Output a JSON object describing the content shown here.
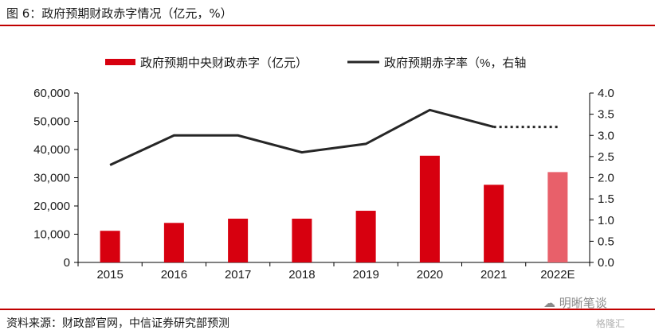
{
  "figure": {
    "title": "图 6：政府预期财政赤字情况（亿元，%）",
    "source": "资料来源：财政部官网，中信证券研究部预测",
    "watermark": "明晰笔谈",
    "watermark_sub": "格隆汇"
  },
  "chart_data": {
    "type": "bar",
    "categories": [
      "2015",
      "2016",
      "2017",
      "2018",
      "2019",
      "2020",
      "2021",
      "2022E"
    ],
    "series": [
      {
        "name": "政府预期中央财政赤字（亿元）",
        "kind": "bar",
        "axis": "left",
        "color": "#d7000f",
        "highlight_color": "#e8606a",
        "highlight_index": 7,
        "values": [
          11200,
          14000,
          15500,
          15500,
          18300,
          37800,
          27500,
          32000
        ]
      },
      {
        "name": "政府预期赤字率（%，右轴",
        "kind": "line",
        "axis": "right",
        "color": "#262626",
        "values": [
          2.3,
          3.0,
          3.0,
          2.6,
          2.8,
          3.6,
          3.2,
          3.2
        ],
        "dashed_from_index": 6
      }
    ],
    "left_axis": {
      "ylim": [
        0,
        60000
      ],
      "ticks": [
        "0",
        "10,000",
        "20,000",
        "30,000",
        "40,000",
        "50,000",
        "60,000"
      ]
    },
    "right_axis": {
      "ylim": [
        0,
        4.0
      ],
      "ticks": [
        "0.0",
        "0.5",
        "1.0",
        "1.5",
        "2.0",
        "2.5",
        "3.0",
        "3.5",
        "4.0"
      ]
    },
    "legend_position": "top",
    "grid": false
  }
}
